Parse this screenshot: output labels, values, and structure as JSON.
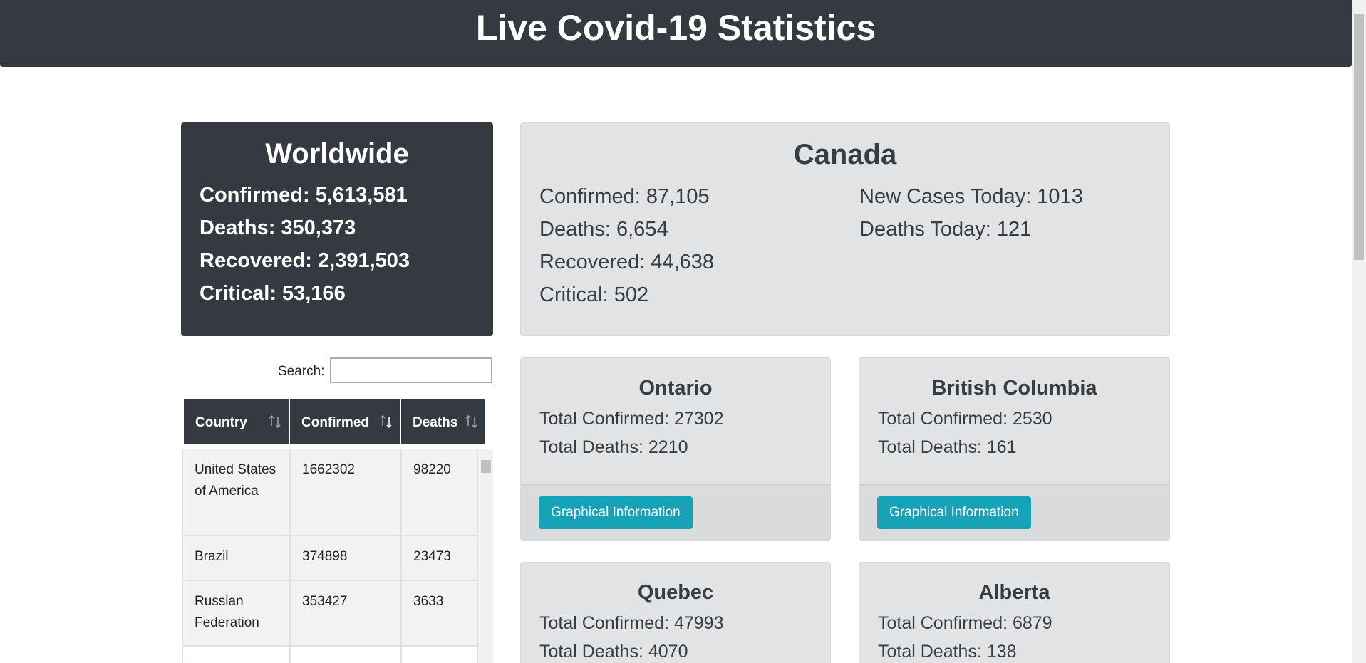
{
  "header": {
    "title": "Live Covid-19 Statistics"
  },
  "worldwide": {
    "title": "Worldwide",
    "stats": [
      "Confirmed: 5,613,581",
      "Deaths: 350,373",
      "Recovered: 2,391,503",
      "Critical: 53,166"
    ]
  },
  "canada": {
    "title": "Canada",
    "left": [
      "Confirmed: 87,105",
      "Deaths: 6,654",
      "Recovered: 44,638",
      "Critical: 502"
    ],
    "right": [
      "New Cases Today: 1013",
      "Deaths Today: 121"
    ]
  },
  "search": {
    "label": "Search:"
  },
  "table": {
    "columns": [
      "Country",
      "Confirmed",
      "Deaths"
    ],
    "rows": [
      [
        "United States of America",
        "1662302",
        "98220"
      ],
      [
        "Brazil",
        "374898",
        "23473"
      ],
      [
        "Russian Federation",
        "353427",
        "3633"
      ]
    ]
  },
  "provinces": [
    {
      "name": "Ontario",
      "lines": [
        "Total Confirmed: 27302",
        "Total Deaths: 2210"
      ],
      "button": "Graphical Information"
    },
    {
      "name": "British Columbia",
      "lines": [
        "Total Confirmed: 2530",
        "Total Deaths: 161"
      ],
      "button": "Graphical Information"
    },
    {
      "name": "Quebec",
      "lines": [
        "Total Confirmed: 47993",
        "Total Deaths: 4070"
      ]
    },
    {
      "name": "Alberta",
      "lines": [
        "Total Confirmed: 6879",
        "Total Deaths: 138"
      ]
    }
  ]
}
